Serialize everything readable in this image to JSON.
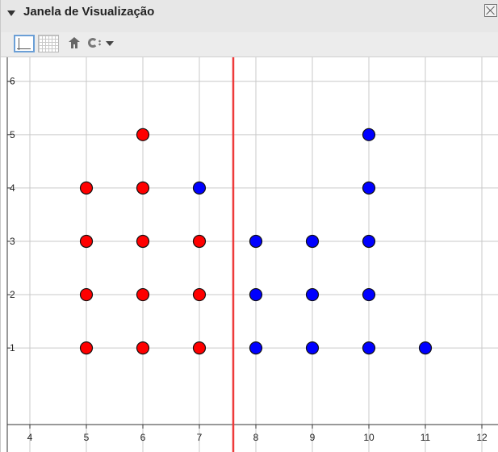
{
  "window": {
    "title": "Janela de Visualização"
  },
  "toolbar": {
    "icons": [
      "axes-icon",
      "grid-icon",
      "home-icon",
      "copy-style-icon",
      "dropdown-arrow-icon"
    ]
  },
  "chart_data": {
    "type": "scatter",
    "xlim": [
      3.6,
      12.3
    ],
    "ylim": [
      -0.95,
      6.45
    ],
    "grid": true,
    "x_ticks": [
      4,
      5,
      6,
      7,
      8,
      9,
      10,
      11,
      12
    ],
    "y_ticks": [
      1,
      2,
      3,
      4,
      5,
      6
    ],
    "vertical_line": {
      "x": 7.6,
      "color": "#ee3b3b"
    },
    "series": [
      {
        "color": "#ff0000",
        "points": [
          [
            5,
            1
          ],
          [
            5,
            2
          ],
          [
            5,
            3
          ],
          [
            5,
            4
          ],
          [
            6,
            1
          ],
          [
            6,
            2
          ],
          [
            6,
            3
          ],
          [
            6,
            4
          ],
          [
            6,
            5
          ],
          [
            7,
            1
          ],
          [
            7,
            2
          ],
          [
            7,
            3
          ]
        ]
      },
      {
        "color": "#0000ff",
        "points": [
          [
            7,
            4
          ],
          [
            8,
            1
          ],
          [
            8,
            2
          ],
          [
            8,
            3
          ],
          [
            9,
            1
          ],
          [
            9,
            2
          ],
          [
            9,
            3
          ],
          [
            10,
            1
          ],
          [
            10,
            2
          ],
          [
            10,
            3
          ],
          [
            10,
            4
          ],
          [
            10,
            5
          ],
          [
            11,
            1
          ]
        ]
      }
    ]
  }
}
